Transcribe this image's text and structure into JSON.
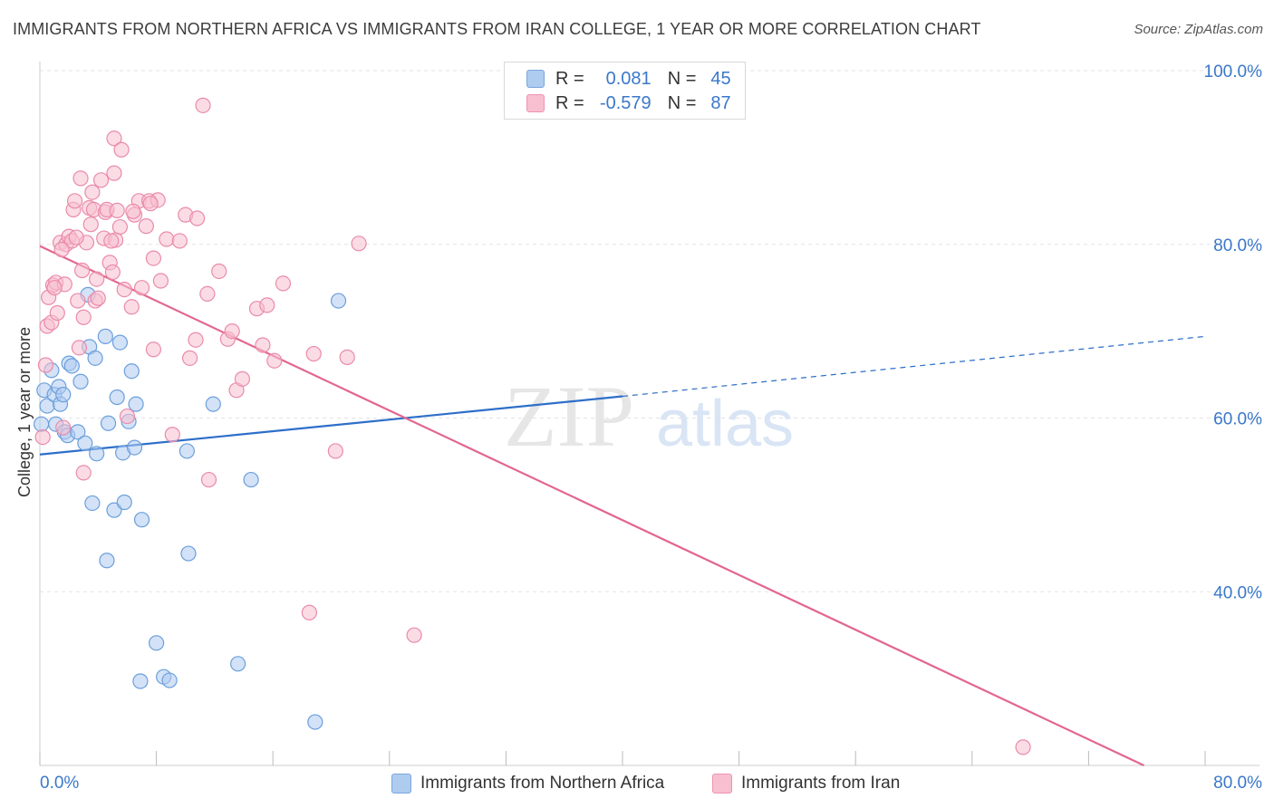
{
  "title": "IMMIGRANTS FROM NORTHERN AFRICA VS IMMIGRANTS FROM IRAN COLLEGE, 1 YEAR OR MORE CORRELATION CHART",
  "source": "Source: ZipAtlas.com",
  "watermark": {
    "zip": "ZIP",
    "atlas": "atlas"
  },
  "legend": {
    "rows": [
      {
        "r_label": "R =",
        "r_value": "0.081",
        "n_label": "N =",
        "n_value": "45",
        "color": "#aecbf0",
        "border": "#7aa7de"
      },
      {
        "r_label": "R =",
        "r_value": "-0.579",
        "n_label": "N =",
        "n_value": "87",
        "color": "#f7bfd0",
        "border": "#ee93b2"
      }
    ]
  },
  "bottom_legend": [
    {
      "label": "Immigrants from Northern Africa",
      "color": "#aecbf0",
      "border": "#7aa7de"
    },
    {
      "label": "Immigrants from Iran",
      "color": "#f7bfd0",
      "border": "#ee93b2"
    }
  ],
  "chart_data": {
    "type": "scatter",
    "title": "IMMIGRANTS FROM NORTHERN AFRICA VS IMMIGRANTS FROM IRAN COLLEGE, 1 YEAR OR MORE CORRELATION CHART",
    "xlabel": "",
    "ylabel": "College, 1 year or more",
    "xlim": [
      0,
      80
    ],
    "ylim": [
      20,
      100
    ],
    "x_tick_labels": [
      "0.0%",
      "80.0%"
    ],
    "y_tick_labels": [
      {
        "value": 100,
        "label": "100.0%"
      },
      {
        "value": 80,
        "label": "80.0%"
      },
      {
        "value": 60,
        "label": "60.0%"
      },
      {
        "value": 40,
        "label": "40.0%"
      }
    ],
    "grid": true,
    "series": [
      {
        "name": "Immigrants from Northern Africa",
        "color": "#6b9fdc",
        "fill": "#aecbf0",
        "trend": {
          "x0": 0,
          "y0": 55.8,
          "x1": 40,
          "y1": 62.5,
          "dash_to_x": 80,
          "dash_to_y": 69.4,
          "color": "#2e6fc9"
        },
        "points": [
          [
            0.1,
            59.3
          ],
          [
            0.3,
            63.2
          ],
          [
            0.5,
            61.4
          ],
          [
            0.8,
            65.5
          ],
          [
            1.0,
            62.7
          ],
          [
            1.1,
            59.3
          ],
          [
            1.3,
            63.6
          ],
          [
            1.4,
            61.6
          ],
          [
            1.6,
            62.7
          ],
          [
            1.7,
            58.4
          ],
          [
            1.9,
            58.0
          ],
          [
            2.0,
            66.3
          ],
          [
            2.2,
            66.0
          ],
          [
            2.6,
            58.4
          ],
          [
            2.8,
            64.2
          ],
          [
            3.1,
            57.1
          ],
          [
            3.3,
            74.2
          ],
          [
            3.4,
            68.2
          ],
          [
            3.6,
            50.2
          ],
          [
            3.8,
            66.9
          ],
          [
            3.9,
            55.9
          ],
          [
            4.5,
            69.4
          ],
          [
            4.6,
            43.6
          ],
          [
            4.7,
            59.4
          ],
          [
            5.1,
            49.4
          ],
          [
            5.3,
            62.4
          ],
          [
            5.5,
            68.7
          ],
          [
            5.7,
            56.0
          ],
          [
            5.8,
            50.3
          ],
          [
            6.1,
            59.6
          ],
          [
            6.3,
            65.4
          ],
          [
            6.5,
            56.6
          ],
          [
            6.6,
            61.6
          ],
          [
            6.9,
            29.7
          ],
          [
            7.0,
            48.3
          ],
          [
            8.0,
            34.1
          ],
          [
            8.5,
            30.2
          ],
          [
            8.9,
            29.8
          ],
          [
            10.1,
            56.2
          ],
          [
            10.2,
            44.4
          ],
          [
            11.9,
            61.6
          ],
          [
            13.6,
            31.7
          ],
          [
            14.5,
            52.9
          ],
          [
            18.9,
            25.0
          ],
          [
            20.5,
            73.5
          ]
        ]
      },
      {
        "name": "Immigrants from Iran",
        "color": "#ea8aab",
        "fill": "#f7bfd0",
        "trend": {
          "x0": 0,
          "y0": 79.8,
          "x1": 75.8,
          "y1": 20.0,
          "color": "#e2678f"
        },
        "points": [
          [
            0.2,
            57.8
          ],
          [
            0.4,
            66.1
          ],
          [
            0.5,
            70.6
          ],
          [
            0.6,
            73.9
          ],
          [
            0.8,
            71.0
          ],
          [
            0.9,
            75.3
          ],
          [
            1.1,
            75.6
          ],
          [
            1.2,
            72.1
          ],
          [
            1.4,
            80.2
          ],
          [
            1.6,
            58.9
          ],
          [
            1.7,
            75.4
          ],
          [
            1.8,
            80.0
          ],
          [
            2.0,
            80.9
          ],
          [
            2.2,
            80.4
          ],
          [
            2.3,
            84.0
          ],
          [
            2.4,
            85.0
          ],
          [
            2.6,
            73.5
          ],
          [
            2.7,
            68.1
          ],
          [
            2.8,
            87.6
          ],
          [
            3.0,
            71.6
          ],
          [
            3.0,
            53.7
          ],
          [
            3.2,
            80.2
          ],
          [
            3.4,
            84.2
          ],
          [
            3.6,
            86.0
          ],
          [
            3.7,
            84.0
          ],
          [
            3.8,
            73.5
          ],
          [
            4.0,
            73.8
          ],
          [
            4.2,
            87.4
          ],
          [
            4.4,
            80.7
          ],
          [
            4.5,
            83.7
          ],
          [
            4.6,
            84.0
          ],
          [
            4.8,
            77.9
          ],
          [
            5.0,
            76.8
          ],
          [
            5.1,
            88.2
          ],
          [
            5.1,
            92.2
          ],
          [
            5.2,
            80.5
          ],
          [
            5.3,
            83.9
          ],
          [
            5.5,
            82.0
          ],
          [
            5.6,
            90.9
          ],
          [
            5.8,
            74.8
          ],
          [
            6.0,
            60.2
          ],
          [
            6.3,
            72.8
          ],
          [
            6.5,
            83.4
          ],
          [
            6.8,
            85.0
          ],
          [
            7.0,
            75.0
          ],
          [
            7.3,
            82.1
          ],
          [
            7.5,
            85.0
          ],
          [
            7.8,
            78.4
          ],
          [
            7.8,
            67.9
          ],
          [
            8.1,
            85.1
          ],
          [
            8.3,
            75.8
          ],
          [
            8.7,
            80.6
          ],
          [
            9.1,
            58.1
          ],
          [
            9.6,
            80.4
          ],
          [
            10.0,
            83.4
          ],
          [
            10.3,
            66.9
          ],
          [
            10.7,
            69.0
          ],
          [
            10.8,
            83.0
          ],
          [
            11.2,
            96.0
          ],
          [
            11.5,
            74.3
          ],
          [
            11.6,
            52.9
          ],
          [
            12.3,
            76.9
          ],
          [
            12.9,
            69.1
          ],
          [
            13.2,
            70.0
          ],
          [
            13.5,
            63.2
          ],
          [
            13.9,
            64.5
          ],
          [
            14.9,
            72.6
          ],
          [
            15.3,
            68.4
          ],
          [
            15.6,
            73.0
          ],
          [
            16.1,
            66.6
          ],
          [
            16.7,
            75.5
          ],
          [
            18.5,
            37.6
          ],
          [
            18.8,
            67.4
          ],
          [
            20.3,
            56.2
          ],
          [
            21.1,
            67.0
          ],
          [
            21.9,
            80.1
          ],
          [
            25.7,
            35.0
          ],
          [
            67.5,
            22.1
          ],
          [
            3.5,
            82.3
          ],
          [
            2.5,
            80.8
          ],
          [
            4.9,
            80.4
          ],
          [
            1.0,
            75.0
          ],
          [
            6.4,
            83.8
          ],
          [
            7.6,
            84.7
          ],
          [
            2.9,
            77.0
          ],
          [
            1.5,
            79.4
          ],
          [
            3.9,
            76.0
          ]
        ]
      }
    ]
  }
}
